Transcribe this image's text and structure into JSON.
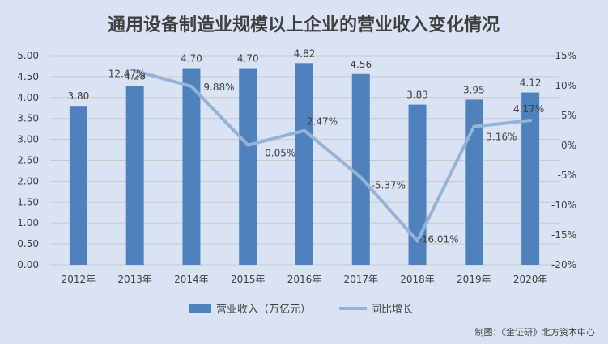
{
  "chart_data": {
    "type": "bar",
    "title": "通用设备制造业规模以上企业的营业收入变化情况",
    "categories": [
      "2012年",
      "2013年",
      "2014年",
      "2015年",
      "2016年",
      "2017年",
      "2018年",
      "2019年",
      "2020年"
    ],
    "series": [
      {
        "name": "营业收入（万亿元）",
        "type": "bar",
        "axis": "left",
        "values": [
          3.8,
          4.28,
          4.7,
          4.7,
          4.82,
          4.56,
          3.83,
          3.95,
          4.12
        ],
        "labels": [
          "3.80",
          "4.28",
          "4.70",
          "4.70",
          "4.82",
          "4.56",
          "3.83",
          "3.95",
          "4.12"
        ],
        "color": "#4f81bd"
      },
      {
        "name": "同比增长",
        "type": "line",
        "axis": "right",
        "values": [
          null,
          12.47,
          9.88,
          0.05,
          2.47,
          -5.37,
          -16.01,
          3.16,
          4.17
        ],
        "labels": [
          "",
          "12.47%",
          "9.88%",
          "0.05%",
          "2.47%",
          "-5.37%",
          "-16.01%",
          "3.16%",
          "4.17%"
        ],
        "color": "#95b3d7"
      }
    ],
    "y_left": {
      "ylim": [
        0,
        5
      ],
      "ticks": [
        "0.00",
        "0.50",
        "1.00",
        "1.50",
        "2.00",
        "2.50",
        "3.00",
        "3.50",
        "4.00",
        "4.50",
        "5.00"
      ]
    },
    "y_right": {
      "ylim": [
        -20,
        15
      ],
      "ticks": [
        "-20%",
        "-15%",
        "-10%",
        "-5%",
        "0%",
        "5%",
        "10%",
        "15%"
      ]
    },
    "grid": true,
    "legend_position": "bottom",
    "source_note": "制图：《金证研》北方资本中心"
  }
}
